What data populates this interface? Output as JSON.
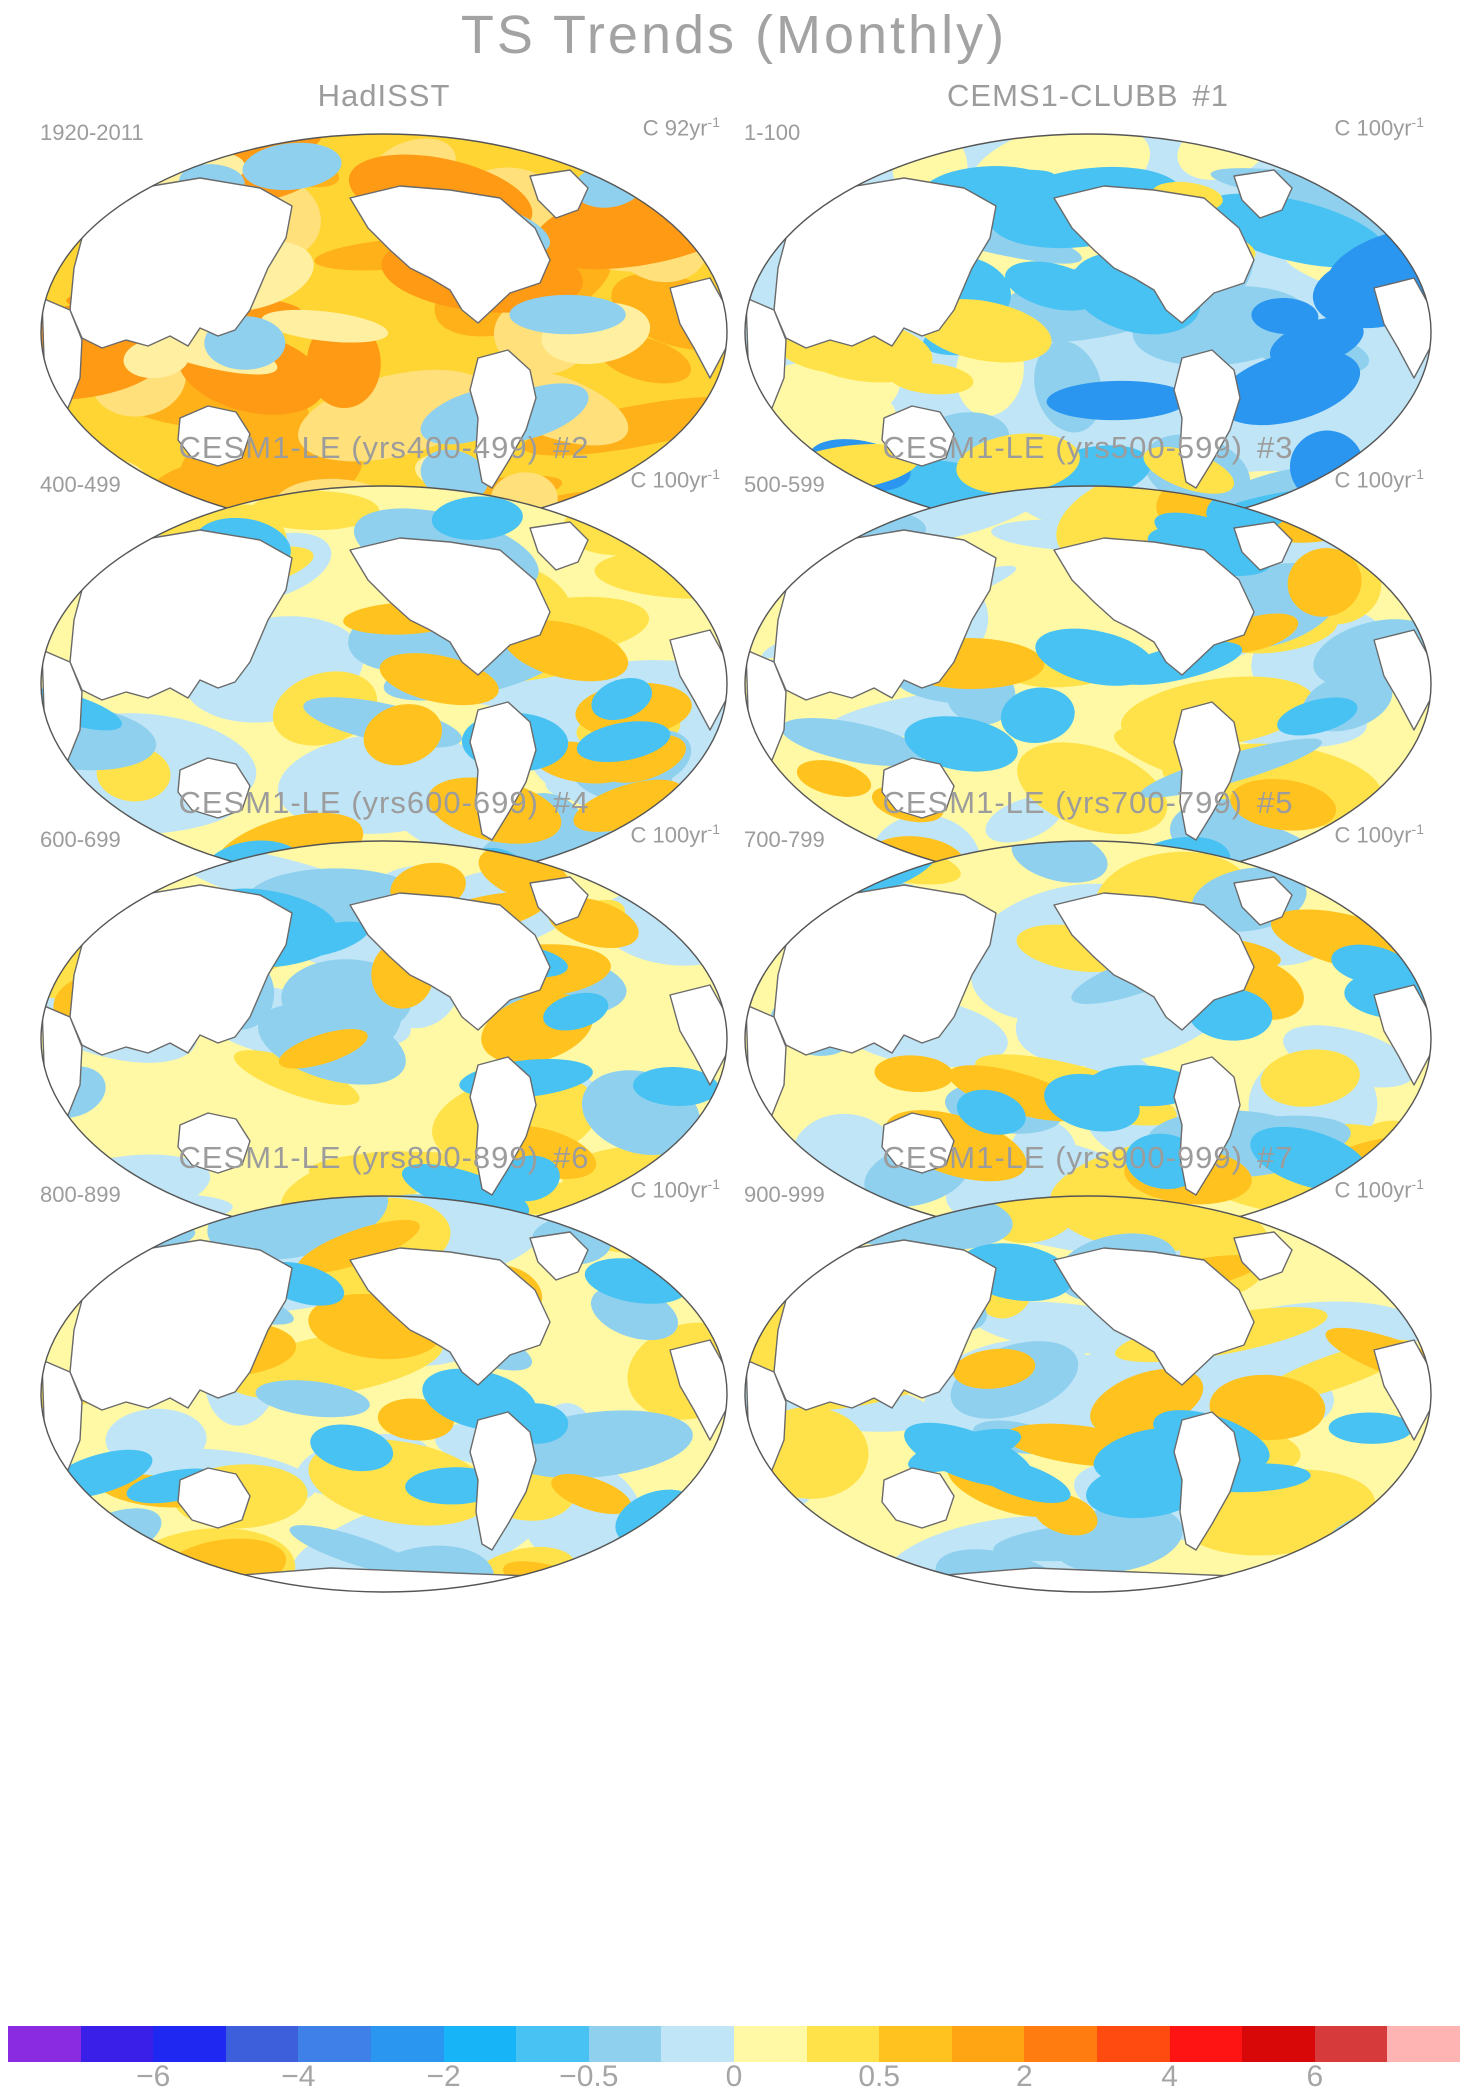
{
  "title": "TS Trends (Monthly)",
  "panels": [
    {
      "title": "HadISST",
      "num": "",
      "range": "1920-2011",
      "units_base": "C 92yr",
      "units_exp": "-1",
      "mode": "warm"
    },
    {
      "title": "CEMS1-CLUBB",
      "num": "#1",
      "range": "1-100",
      "units_base": "C 100yr",
      "units_exp": "-1",
      "mode": "cool"
    },
    {
      "title": "CESM1-LE (yrs400-499)",
      "num": "#2",
      "range": "400-499",
      "units_base": "C 100yr",
      "units_exp": "-1",
      "mode": "mixed"
    },
    {
      "title": "CESM1-LE (yrs500-599)",
      "num": "#3",
      "range": "500-599",
      "units_base": "C 100yr",
      "units_exp": "-1",
      "mode": "mixed"
    },
    {
      "title": "CESM1-LE (yrs600-699)",
      "num": "#4",
      "range": "600-699",
      "units_base": "C 100yr",
      "units_exp": "-1",
      "mode": "mixed"
    },
    {
      "title": "CESM1-LE (yrs700-799)",
      "num": "#5",
      "range": "700-799",
      "units_base": "C 100yr",
      "units_exp": "-1",
      "mode": "mixed"
    },
    {
      "title": "CESM1-LE (yrs800-899)",
      "num": "#6",
      "range": "800-899",
      "units_base": "C 100yr",
      "units_exp": "-1",
      "mode": "mixed"
    },
    {
      "title": "CESM1-LE (yrs900-999)",
      "num": "#7",
      "range": "900-999",
      "units_base": "C 100yr",
      "units_exp": "-1",
      "mode": "mixed"
    }
  ],
  "colorbar": {
    "colors": [
      "#8a2be2",
      "#3a1fe8",
      "#1e28f0",
      "#3d5fdc",
      "#3f7fe8",
      "#2a96f0",
      "#18b4f8",
      "#48c2f2",
      "#8fd0ee",
      "#bfe5f6",
      "#fff9a6",
      "#ffe24a",
      "#ffc21e",
      "#ffa412",
      "#ff7d10",
      "#ff4a10",
      "#ff1414",
      "#d80808",
      "#d63a3a",
      "#ffb4b4"
    ],
    "ticks": [
      {
        "label": "−6",
        "index": 2
      },
      {
        "label": "−4",
        "index": 4
      },
      {
        "label": "−2",
        "index": 6
      },
      {
        "label": "−0.5",
        "index": 8
      },
      {
        "label": "0",
        "index": 10
      },
      {
        "label": "0.5",
        "index": 12
      },
      {
        "label": "2",
        "index": 14
      },
      {
        "label": "4",
        "index": 16
      },
      {
        "label": "6",
        "index": 18
      }
    ]
  }
}
